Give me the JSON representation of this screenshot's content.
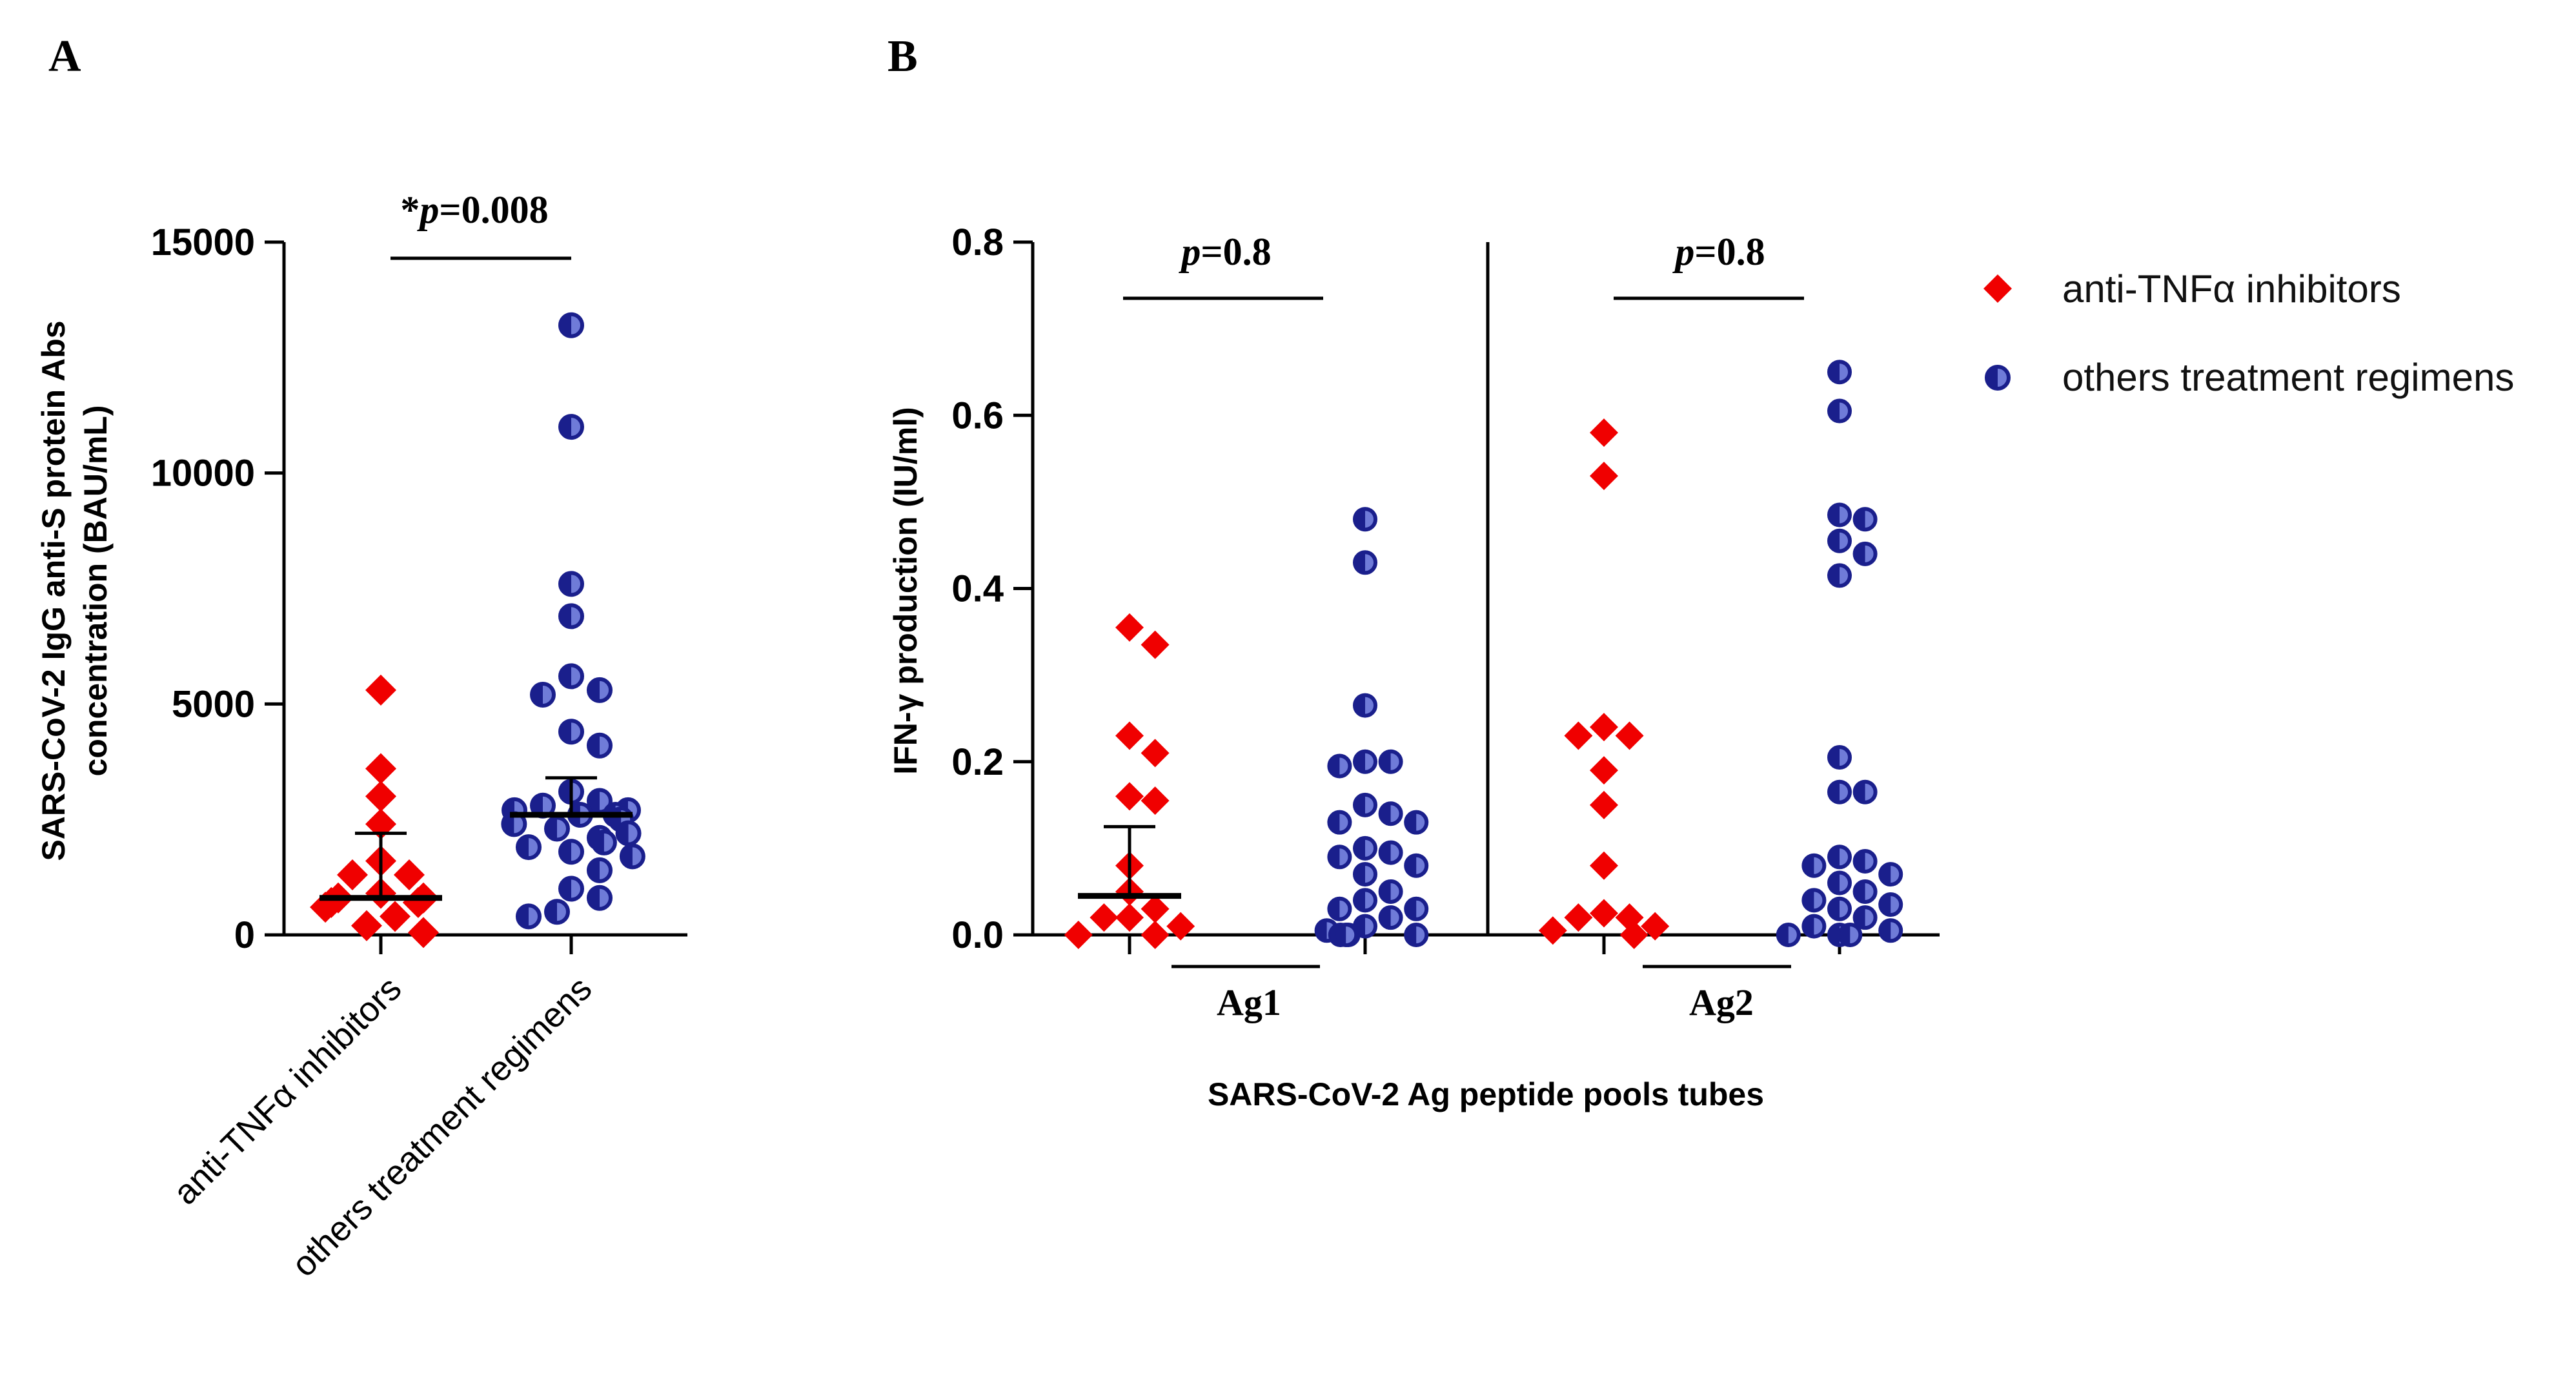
{
  "colors": {
    "tnf": "#f00000",
    "others": "#1a1f8c",
    "others_fill_light": "#6f7bd8"
  },
  "chart_data": [
    {
      "panel": "A",
      "type": "scatter",
      "ylabel_line1": "SARS-CoV-2 IgG anti-S protein Abs",
      "ylabel_line2": "concentration (BAU/mL)",
      "ylim": [
        0,
        15000
      ],
      "yticks": [
        0,
        5000,
        10000,
        15000
      ],
      "ytick_labels": [
        "0",
        "5000",
        "10000",
        "15000"
      ],
      "categories": [
        "anti-TNFα inhibitors",
        "others treatment regimens"
      ],
      "annotation": {
        "star": "*",
        "p_letter": "p",
        "p_rest": "=0.008"
      },
      "series": [
        {
          "name": "anti-TNFα inhibitors",
          "median": 800,
          "error_upper": 2200,
          "values": [
            5300,
            3600,
            3000,
            2400,
            1600,
            1300,
            1300,
            900,
            800,
            800,
            700,
            700,
            600,
            400,
            200,
            50
          ]
        },
        {
          "name": "others treatment regimens",
          "median": 2600,
          "error_upper": 3400,
          "values": [
            13200,
            11000,
            7600,
            6900,
            5600,
            5300,
            5200,
            4400,
            4100,
            3100,
            2900,
            2800,
            2700,
            2700,
            2600,
            2600,
            2500,
            2400,
            2300,
            2200,
            2100,
            2000,
            1900,
            1800,
            1700,
            1400,
            1000,
            800,
            500,
            400
          ]
        }
      ]
    },
    {
      "panel": "B",
      "type": "scatter",
      "ylabel": "IFN-γ production (IU/ml)",
      "xlabel": "SARS-CoV-2 Ag peptide pools tubes",
      "ylim": [
        0,
        0.8
      ],
      "yticks": [
        0,
        0.2,
        0.4,
        0.6,
        0.8
      ],
      "ytick_labels": [
        "0.0",
        "0.2",
        "0.4",
        "0.6",
        "0.8"
      ],
      "groups": [
        {
          "label": "Ag1",
          "annotation": {
            "p_letter": "p",
            "p_rest": "=0.8"
          },
          "series": [
            {
              "name": "anti-TNFα inhibitors",
              "median": 0.045,
              "error_upper": 0.125,
              "values": [
                0.355,
                0.335,
                0.23,
                0.21,
                0.16,
                0.155,
                0.08,
                0.05,
                0.03,
                0.02,
                0.02,
                0.01,
                0.0,
                0.0
              ]
            },
            {
              "name": "others treatment regimens",
              "median": null,
              "error_upper": null,
              "values": [
                0.48,
                0.43,
                0.265,
                0.2,
                0.2,
                0.195,
                0.15,
                0.14,
                0.13,
                0.13,
                0.1,
                0.095,
                0.09,
                0.08,
                0.07,
                0.05,
                0.04,
                0.03,
                0.03,
                0.02,
                0.01,
                0.005,
                0.0,
                0.0,
                0.0,
                0.0
              ]
            }
          ]
        },
        {
          "label": "Ag2",
          "annotation": {
            "p_letter": "p",
            "p_rest": "=0.8"
          },
          "series": [
            {
              "name": "anti-TNFα inhibitors",
              "median": null,
              "error_upper": null,
              "values": [
                0.58,
                0.53,
                0.24,
                0.23,
                0.23,
                0.19,
                0.15,
                0.08,
                0.025,
                0.02,
                0.02,
                0.01,
                0.005,
                0.0
              ]
            },
            {
              "name": "others treatment regimens",
              "median": null,
              "error_upper": null,
              "values": [
                0.65,
                0.605,
                0.485,
                0.48,
                0.455,
                0.44,
                0.415,
                0.205,
                0.165,
                0.165,
                0.09,
                0.085,
                0.08,
                0.07,
                0.06,
                0.05,
                0.04,
                0.035,
                0.03,
                0.02,
                0.01,
                0.005,
                0.0,
                0.0,
                0.0
              ]
            }
          ]
        }
      ],
      "legend": {
        "position": "top-right",
        "entries": [
          "anti-TNFα inhibitors",
          "others treatment regimens"
        ]
      }
    }
  ]
}
